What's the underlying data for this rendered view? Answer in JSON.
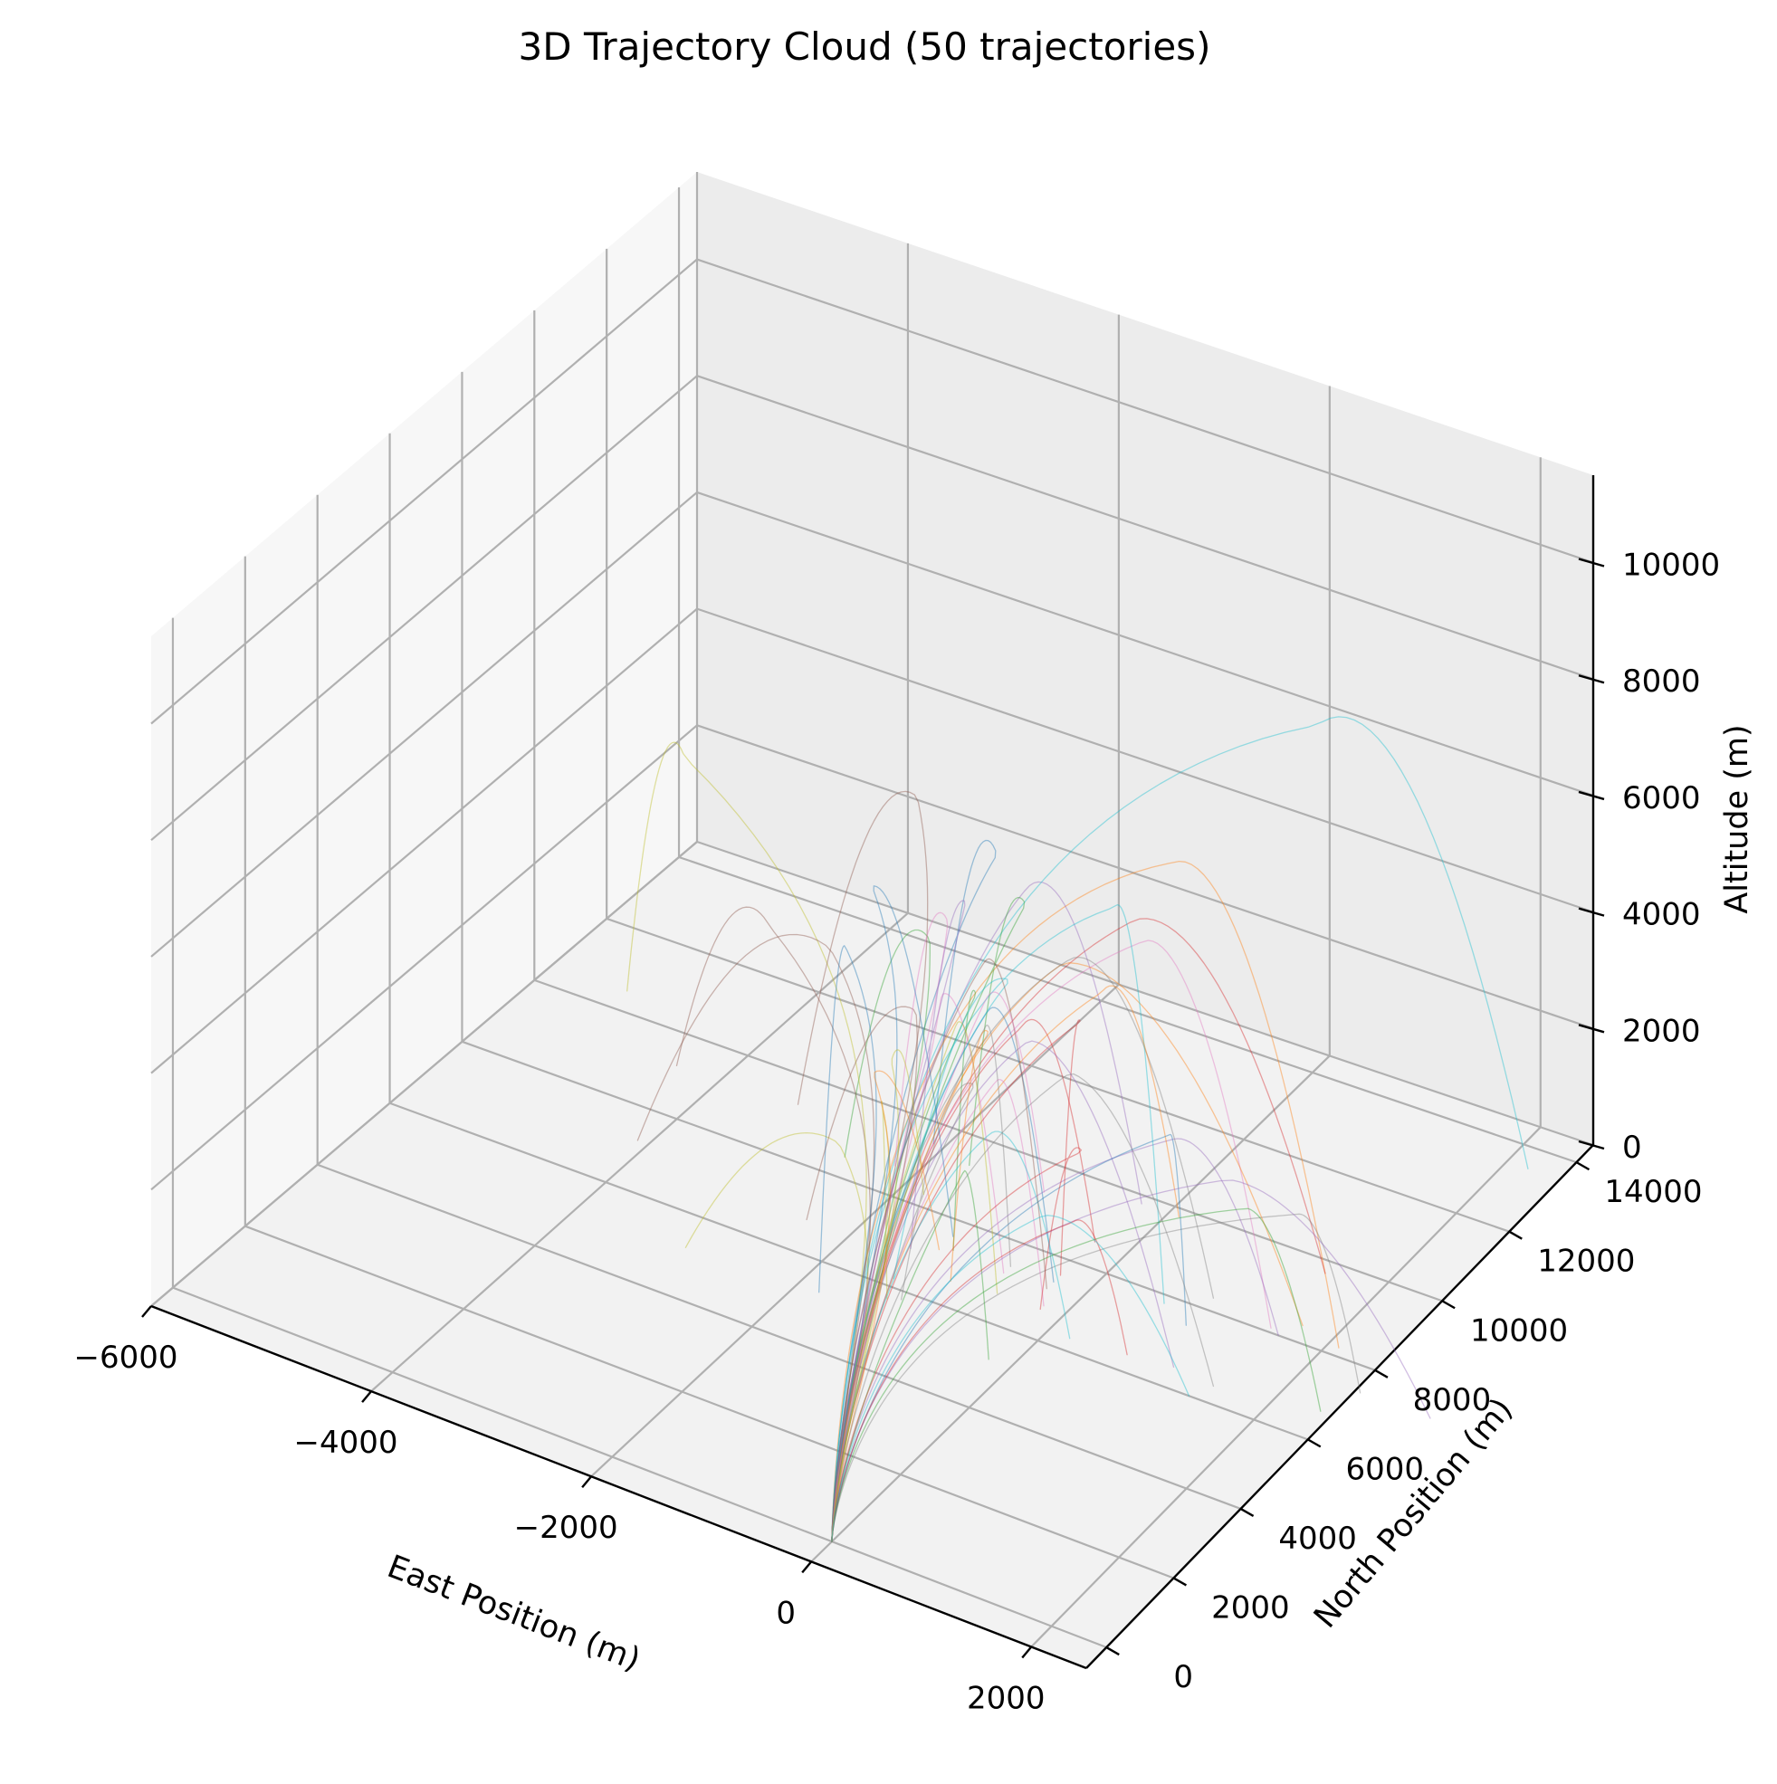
{
  "chart_data": {
    "type": "line3d",
    "title": "3D Trajectory Cloud (50 trajectories)",
    "xlabel": "East Position (m)",
    "ylabel": "North Position (m)",
    "zlabel": "Altitude (m)",
    "xlim": [
      -6000,
      2500
    ],
    "ylim": [
      -600,
      14500
    ],
    "zlim": [
      0,
      11500
    ],
    "xticks": [
      "−6000",
      "−4000",
      "−2000",
      "0",
      "2000"
    ],
    "xtick_values": [
      -6000,
      -4000,
      -2000,
      0,
      2000
    ],
    "yticks": [
      "0",
      "2000",
      "4000",
      "6000",
      "8000",
      "10000",
      "12000",
      "14000"
    ],
    "ytick_values": [
      0,
      2000,
      4000,
      6000,
      8000,
      10000,
      12000,
      14000
    ],
    "zticks": [
      "0",
      "2000",
      "4000",
      "6000",
      "8000",
      "10000"
    ],
    "ztick_values": [
      0,
      2000,
      4000,
      6000,
      8000,
      10000
    ],
    "grid": true,
    "n_trajectories": 50,
    "launch_point": [
      0,
      0,
      0
    ],
    "series_colors": [
      "#1f77b4",
      "#ff7f0e",
      "#2ca02c",
      "#d62728",
      "#9467bd",
      "#8c564b",
      "#e377c2",
      "#7f7f7f",
      "#bcbd22",
      "#17becf"
    ],
    "series": [
      {
        "apex_xyz": [
          -250,
          5600,
          8400
        ],
        "impact_xy": [
          -2100,
          9500
        ]
      },
      {
        "apex_xyz": [
          1400,
          5600,
          9400
        ],
        "impact_xy": [
          2100,
          8200
        ]
      },
      {
        "apex_xyz": [
          -1000,
          6000,
          6200
        ],
        "impact_xy": [
          -2600,
          8500
        ]
      },
      {
        "apex_xyz": [
          650,
          6800,
          7200
        ],
        "impact_xy": [
          1500,
          9700
        ]
      },
      {
        "apex_xyz": [
          -100,
          6000,
          7700
        ],
        "impact_xy": [
          -250,
          9800
        ]
      },
      {
        "apex_xyz": [
          -2450,
          5900,
          5500
        ],
        "impact_xy": [
          -4400,
          9200
        ]
      },
      {
        "apex_xyz": [
          900,
          6300,
          7300
        ],
        "impact_xy": [
          1500,
          8100
        ]
      },
      {
        "apex_xyz": [
          2250,
          6500,
          3400
        ],
        "impact_xy": [
          2550,
          7400
        ]
      },
      {
        "apex_xyz": [
          -3500,
          6700,
          7250
        ],
        "impact_xy": [
          -5300,
          10500
        ]
      },
      {
        "apex_xyz": [
          2000,
          7900,
          10800
        ],
        "impact_xy": [
          2200,
          13500
        ]
      },
      {
        "apex_xyz": [
          -200,
          5200,
          6000
        ],
        "impact_xy": [
          -300,
          7400
        ]
      },
      {
        "apex_xyz": [
          300,
          5800,
          6800
        ],
        "impact_xy": [
          1700,
          8400
        ]
      },
      {
        "apex_xyz": [
          -350,
          5300,
          6100
        ],
        "impact_xy": [
          -1200,
          7300
        ]
      },
      {
        "apex_xyz": [
          100,
          5200,
          5900
        ],
        "impact_xy": [
          -300,
          8600
        ]
      },
      {
        "apex_xyz": [
          1200,
          6100,
          4200
        ],
        "impact_xy": [
          1600,
          8000
        ]
      },
      {
        "apex_xyz": [
          -1600,
          5000,
          6200
        ],
        "impact_xy": [
          -4100,
          7200
        ]
      },
      {
        "apex_xyz": [
          -700,
          5400,
          5800
        ],
        "impact_xy": [
          -700,
          7200
        ]
      },
      {
        "apex_xyz": [
          400,
          5700,
          7000
        ],
        "impact_xy": [
          900,
          8300
        ]
      },
      {
        "apex_xyz": [
          -1200,
          4000,
          3700
        ],
        "impact_xy": [
          -3000,
          5200
        ]
      },
      {
        "apex_xyz": [
          900,
          5400,
          8400
        ],
        "impact_xy": [
          600,
          7800
        ]
      },
      {
        "apex_xyz": [
          -1400,
          4800,
          6500
        ],
        "impact_xy": [
          -1800,
          5300
        ]
      },
      {
        "apex_xyz": [
          400,
          6600,
          5900
        ],
        "impact_xy": [
          100,
          9800
        ]
      },
      {
        "apex_xyz": [
          -400,
          6900,
          6700
        ],
        "impact_xy": [
          -1700,
          9300
        ]
      },
      {
        "apex_xyz": [
          300,
          6300,
          5500
        ],
        "impact_xy": [
          -300,
          7600
        ]
      },
      {
        "apex_xyz": [
          200,
          5100,
          5800
        ],
        "impact_xy": [
          1100,
          6500
        ]
      },
      {
        "apex_xyz": [
          -1600,
          7500,
          7400
        ],
        "impact_xy": [
          -3300,
          9300
        ]
      },
      {
        "apex_xyz": [
          -100,
          5100,
          4900
        ],
        "impact_xy": [
          -200,
          6800
        ]
      },
      {
        "apex_xyz": [
          -300,
          5100,
          4700
        ],
        "impact_xy": [
          -1200,
          5800
        ]
      },
      {
        "apex_xyz": [
          -1000,
          4600,
          4200
        ],
        "impact_xy": [
          -1300,
          5700
        ]
      },
      {
        "apex_xyz": [
          100,
          4300,
          4600
        ],
        "impact_xy": [
          200,
          6300
        ]
      },
      {
        "apex_xyz": [
          1000,
          6700,
          3800
        ],
        "impact_xy": [
          900,
          7500
        ]
      },
      {
        "apex_xyz": [
          -1300,
          5300,
          4100
        ],
        "impact_xy": [
          -1300,
          7200
        ]
      },
      {
        "apex_xyz": [
          -300,
          4800,
          3400
        ],
        "impact_xy": [
          -200,
          5200
        ]
      },
      {
        "apex_xyz": [
          600,
          5400,
          4000
        ],
        "impact_xy": [
          -200,
          6700
        ]
      },
      {
        "apex_xyz": [
          1700,
          6200,
          3800
        ],
        "impact_xy": [
          3200,
          7400
        ]
      },
      {
        "apex_xyz": [
          -1000,
          5600,
          5200
        ],
        "impact_xy": [
          -2400,
          6800
        ]
      },
      {
        "apex_xyz": [
          -800,
          5900,
          6700
        ],
        "impact_xy": [
          -2200,
          8700
        ]
      },
      {
        "apex_xyz": [
          -300,
          5400,
          5500
        ],
        "impact_xy": [
          -700,
          7400
        ]
      },
      {
        "apex_xyz": [
          -400,
          4900,
          5800
        ],
        "impact_xy": [
          -600,
          6700
        ]
      },
      {
        "apex_xyz": [
          -100,
          5500,
          6400
        ],
        "impact_xy": [
          -1400,
          6200
        ]
      },
      {
        "apex_xyz": [
          -1600,
          6200,
          6600
        ],
        "impact_xy": [
          -1300,
          7600
        ]
      },
      {
        "apex_xyz": [
          -200,
          5200,
          5600
        ],
        "impact_xy": [
          -1000,
          6600
        ]
      },
      {
        "apex_xyz": [
          1900,
          6100,
          3500
        ],
        "impact_xy": [
          2400,
          6700
        ]
      },
      {
        "apex_xyz": [
          700,
          4800,
          3200
        ],
        "impact_xy": [
          700,
          6400
        ]
      },
      {
        "apex_xyz": [
          -700,
          6100,
          7000
        ],
        "impact_xy": [
          -1500,
          7000
        ]
      },
      {
        "apex_xyz": [
          -200,
          5100,
          6900
        ],
        "impact_xy": [
          -300,
          7200
        ]
      },
      {
        "apex_xyz": [
          -400,
          5700,
          5700
        ],
        "impact_xy": [
          -1000,
          9300
        ]
      },
      {
        "apex_xyz": [
          300,
          6000,
          4800
        ],
        "impact_xy": [
          1500,
          6400
        ]
      },
      {
        "apex_xyz": [
          -1100,
          5200,
          4500
        ],
        "impact_xy": [
          -1800,
          8300
        ]
      },
      {
        "apex_xyz": [
          500,
          4600,
          3300
        ],
        "impact_xy": [
          1400,
          6000
        ]
      }
    ]
  }
}
